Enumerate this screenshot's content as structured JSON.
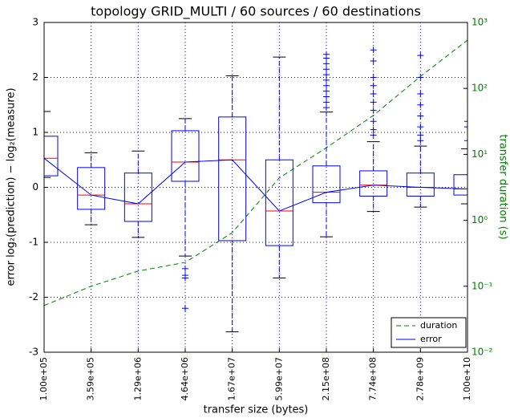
{
  "chart_data": {
    "type": "box",
    "title": "topology GRID_MULTI / 60 sources / 60 destinations",
    "x_label": "transfer size (bytes)",
    "y_label": "error log₂(prediction) − log₂(measure)",
    "y2_label": "transfer duration (s)",
    "categories": [
      "1.00e+05",
      "3.59e+05",
      "1.29e+06",
      "4.64e+06",
      "1.67e+07",
      "5.99e+07",
      "2.15e+08",
      "7.74e+08",
      "2.78e+09",
      "1.00e+10"
    ],
    "ylim": [
      -3,
      3
    ],
    "yticks": [
      -3,
      -2,
      -1,
      0,
      1,
      2,
      3
    ],
    "y2lim": [
      0.01,
      1000
    ],
    "y2scale": "log",
    "y2ticks": [
      {
        "value": 0.01,
        "label": "10⁻²"
      },
      {
        "value": 0.1,
        "label": "10⁻¹"
      },
      {
        "value": 1,
        "label": "10⁰"
      },
      {
        "value": 10,
        "label": "10¹"
      },
      {
        "value": 100,
        "label": "10²"
      },
      {
        "value": 1000,
        "label": "10³"
      }
    ],
    "grid": true,
    "legend": "lower right",
    "series": [
      {
        "name": "error",
        "color": "#0000ff",
        "median_color": "#ff0000",
        "boxes": [
          {
            "whislo": 0.18,
            "q1": 0.21,
            "med": 0.53,
            "q3": 0.93,
            "whishi": 1.38,
            "fliers": []
          },
          {
            "whislo": -0.68,
            "q1": -0.4,
            "med": -0.14,
            "q3": 0.36,
            "whishi": 0.63,
            "fliers": []
          },
          {
            "whislo": -0.91,
            "q1": -0.62,
            "med": -0.3,
            "q3": 0.26,
            "whishi": 0.66,
            "fliers": []
          },
          {
            "whislo": -1.25,
            "q1": 0.11,
            "med": 0.46,
            "q3": 1.03,
            "whishi": 1.25,
            "fliers": [
              -1.48,
              -1.6,
              -1.65,
              -2.2
            ]
          },
          {
            "whislo": -2.63,
            "q1": -0.97,
            "med": 0.5,
            "q3": 1.28,
            "whishi": 2.03,
            "fliers": []
          },
          {
            "whislo": -1.65,
            "q1": -1.06,
            "med": -0.43,
            "q3": 0.5,
            "whishi": 2.37,
            "fliers": []
          },
          {
            "whislo": -0.9,
            "q1": -0.28,
            "med": -0.09,
            "q3": 0.39,
            "whishi": 1.37,
            "fliers": [
              1.45,
              1.55,
              1.65,
              1.75,
              1.85,
              1.95,
              2.05,
              2.15,
              2.25,
              2.35,
              2.42
            ]
          },
          {
            "whislo": -0.44,
            "q1": -0.16,
            "med": 0.04,
            "q3": 0.3,
            "whishi": 0.83,
            "fliers": [
              0.95,
              1.05,
              1.2,
              1.4,
              1.55,
              1.7,
              1.85,
              2.0,
              2.3,
              2.5
            ]
          },
          {
            "whislo": -0.36,
            "q1": -0.16,
            "med": 0.0,
            "q3": 0.26,
            "whishi": 0.75,
            "fliers": [
              0.85,
              0.95,
              1.1,
              1.3,
              1.5,
              1.7,
              2.0,
              2.4
            ]
          },
          {
            "whislo": -0.3,
            "q1": -0.14,
            "med": -0.03,
            "q3": 0.23,
            "whishi": 0.7,
            "fliers": [
              0.85,
              1.1,
              1.2
            ]
          }
        ]
      },
      {
        "name": "duration",
        "color": "#008000",
        "axis": "y2",
        "dash": true,
        "values": [
          0.051,
          0.1,
          0.17,
          0.23,
          0.65,
          4.4,
          12.6,
          39,
          152,
          540
        ]
      }
    ]
  }
}
